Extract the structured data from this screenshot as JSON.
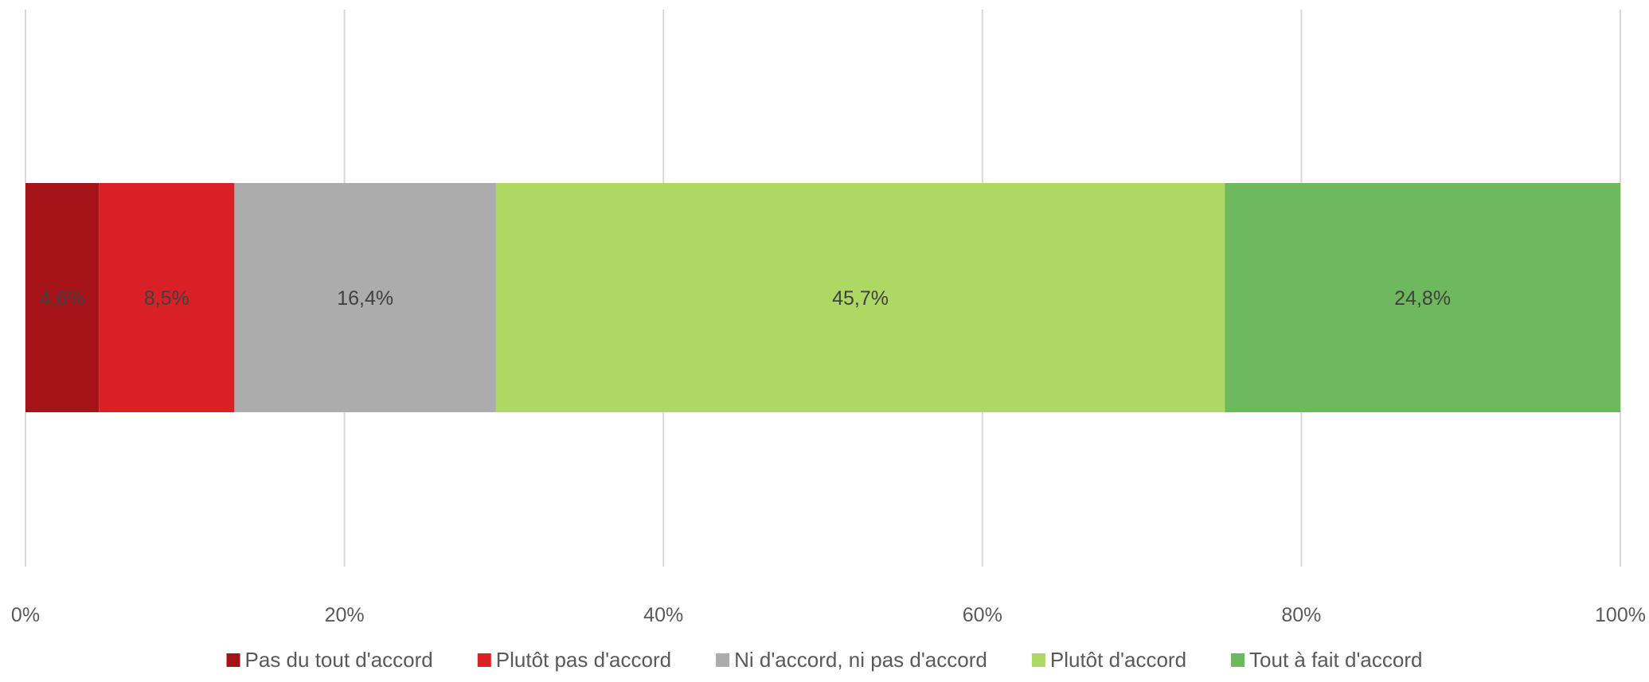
{
  "chart_data": {
    "type": "bar",
    "orientation": "horizontal",
    "stacked": "100%",
    "title": "",
    "xlabel": "",
    "ylabel": "",
    "xlim": [
      0,
      100
    ],
    "x_ticks": [
      "0%",
      "20%",
      "40%",
      "60%",
      "80%",
      "100%"
    ],
    "grid": true,
    "legend_position": "bottom",
    "series": [
      {
        "name": "Pas du tout d'accord",
        "value": 4.6,
        "label": "4,6%",
        "color": "#a51218"
      },
      {
        "name": "Plutôt pas d'accord",
        "value": 8.5,
        "label": "8,5%",
        "color": "#d92027"
      },
      {
        "name": "Ni d'accord, ni pas d'accord",
        "value": 16.4,
        "label": "16,4%",
        "color": "#acacac"
      },
      {
        "name": "Plutôt d'accord",
        "value": 45.7,
        "label": "45,7%",
        "color": "#add864"
      },
      {
        "name": "Tout à fait d'accord",
        "value": 24.8,
        "label": "24,8%",
        "color": "#6eb85e"
      }
    ]
  }
}
